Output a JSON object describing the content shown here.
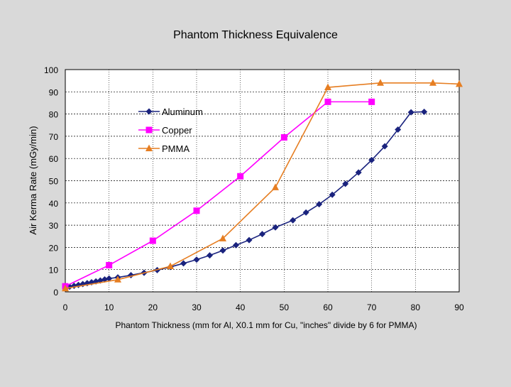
{
  "chart_data": {
    "type": "line",
    "title": "Phantom Thickness Equivalence",
    "xlabel": "Phantom Thickness (mm for Al, X0.1 mm for Cu, \"inches\" divide by 6 for PMMA)",
    "ylabel": "Air Kerma Rate (mGy/min)",
    "xlim": [
      0,
      90
    ],
    "ylim": [
      0,
      100
    ],
    "xticks": [
      "0",
      "10",
      "20",
      "30",
      "40",
      "50",
      "60",
      "70",
      "80",
      "90"
    ],
    "yticks": [
      "0",
      "10",
      "20",
      "30",
      "40",
      "50",
      "60",
      "70",
      "80",
      "90",
      "100"
    ],
    "legend_position": "upper-left",
    "series": [
      {
        "name": "Aluminum",
        "color": "#1a237e",
        "marker": "diamond",
        "x": [
          0,
          1,
          2,
          3,
          4,
          5,
          6,
          7,
          8,
          9,
          10,
          12,
          15,
          18,
          21,
          24,
          27,
          30,
          33,
          36,
          39,
          42,
          45,
          48,
          52,
          55,
          58,
          61,
          64,
          67,
          70,
          73,
          76,
          79,
          82
        ],
        "y": [
          2,
          2.3,
          2.7,
          3.1,
          3.5,
          3.9,
          4.3,
          4.7,
          5.1,
          5.6,
          6,
          6.5,
          7.5,
          8.6,
          9.8,
          11.2,
          12.8,
          14.5,
          16.4,
          18.6,
          21,
          23.3,
          26,
          29,
          32.2,
          35.7,
          39.4,
          43.7,
          48.6,
          53.7,
          59.3,
          65.5,
          73,
          80.8,
          81
        ]
      },
      {
        "name": "Copper",
        "color": "#ff00ff",
        "marker": "square",
        "x": [
          0,
          10,
          20,
          30,
          40,
          50,
          60,
          70
        ],
        "y": [
          2.5,
          12,
          23,
          36.5,
          52,
          69.5,
          85.5,
          85.5
        ]
      },
      {
        "name": "PMMA",
        "color": "#e67e22",
        "marker": "triangle",
        "x": [
          0,
          12,
          24,
          36,
          48,
          60,
          72,
          84,
          90
        ],
        "y": [
          1.5,
          5.5,
          11.5,
          24,
          47,
          92,
          94,
          94,
          93.5
        ]
      }
    ]
  }
}
